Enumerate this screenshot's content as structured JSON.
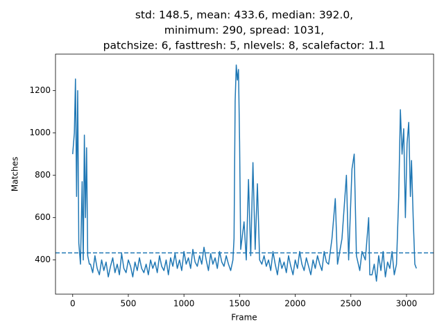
{
  "chart_data": {
    "type": "line",
    "title": [
      "std: 148.5, mean: 433.6, median: 392.0,",
      "minimum: 290, spread: 1031,",
      "patchsize: 6, fasttresh: 5, nlevels: 8, scalefactor: 1.1"
    ],
    "x_label": "Frame",
    "y_label": "Matches",
    "x": [
      0,
      15,
      25,
      35,
      45,
      55,
      70,
      85,
      95,
      105,
      115,
      125,
      135,
      150,
      160,
      180,
      200,
      220,
      240,
      260,
      280,
      300,
      320,
      340,
      360,
      380,
      400,
      420,
      440,
      460,
      480,
      500,
      520,
      540,
      560,
      580,
      600,
      620,
      640,
      660,
      680,
      700,
      720,
      740,
      760,
      780,
      800,
      820,
      840,
      860,
      880,
      900,
      920,
      940,
      960,
      980,
      1000,
      1020,
      1040,
      1060,
      1080,
      1100,
      1120,
      1140,
      1160,
      1180,
      1200,
      1220,
      1240,
      1260,
      1280,
      1300,
      1320,
      1340,
      1360,
      1380,
      1400,
      1420,
      1440,
      1450,
      1460,
      1470,
      1480,
      1490,
      1500,
      1510,
      1540,
      1560,
      1580,
      1600,
      1620,
      1640,
      1660,
      1680,
      1700,
      1720,
      1740,
      1760,
      1780,
      1800,
      1820,
      1840,
      1860,
      1880,
      1900,
      1920,
      1940,
      1960,
      1980,
      2000,
      2020,
      2040,
      2060,
      2080,
      2100,
      2120,
      2140,
      2160,
      2180,
      2200,
      2220,
      2240,
      2260,
      2280,
      2300,
      2330,
      2360,
      2380,
      2420,
      2460,
      2480,
      2510,
      2530,
      2550,
      2580,
      2600,
      2630,
      2660,
      2670,
      2690,
      2710,
      2730,
      2750,
      2770,
      2790,
      2810,
      2830,
      2850,
      2870,
      2890,
      2910,
      2930,
      2945,
      2960,
      2975,
      2990,
      3005,
      3020,
      3035,
      3045,
      3060,
      3075,
      3089
    ],
    "series": [
      {
        "name": "matches",
        "color": "#1f77b4",
        "values": [
          900,
          1000,
          1255,
          700,
          1200,
          480,
          380,
          770,
          400,
          990,
          600,
          930,
          420,
          380,
          380,
          340,
          420,
          360,
          330,
          400,
          350,
          390,
          320,
          370,
          410,
          340,
          380,
          330,
          430,
          360,
          340,
          400,
          370,
          320,
          390,
          350,
          410,
          360,
          340,
          380,
          330,
          400,
          360,
          390,
          340,
          420,
          370,
          350,
          400,
          330,
          410,
          370,
          430,
          360,
          400,
          350,
          440,
          380,
          410,
          360,
          450,
          390,
          370,
          420,
          380,
          460,
          400,
          350,
          430,
          380,
          410,
          360,
          440,
          390,
          370,
          420,
          380,
          350,
          400,
          500,
          1150,
          1321,
          1250,
          1300,
          960,
          450,
          580,
          400,
          780,
          420,
          860,
          450,
          760,
          400,
          380,
          420,
          370,
          400,
          350,
          440,
          380,
          330,
          410,
          360,
          390,
          340,
          420,
          370,
          330,
          400,
          360,
          440,
          380,
          350,
          410,
          370,
          330,
          400,
          360,
          420,
          380,
          350,
          440,
          390,
          380,
          500,
          690,
          380,
          500,
          800,
          400,
          830,
          900,
          420,
          350,
          440,
          400,
          600,
          330,
          330,
          380,
          300,
          420,
          350,
          440,
          320,
          390,
          360,
          440,
          330,
          380,
          700,
          1110,
          900,
          1020,
          600,
          950,
          1050,
          700,
          870,
          600,
          380,
          360
        ]
      }
    ],
    "mean_line": 433.6,
    "xlim": [
      -154.45,
      3243.45
    ],
    "ylim": [
      238.45,
      1372.55
    ],
    "xticks": [
      0,
      500,
      1000,
      1500,
      2000,
      2500,
      3000
    ],
    "yticks": [
      400,
      600,
      800,
      1000,
      1200
    ]
  }
}
